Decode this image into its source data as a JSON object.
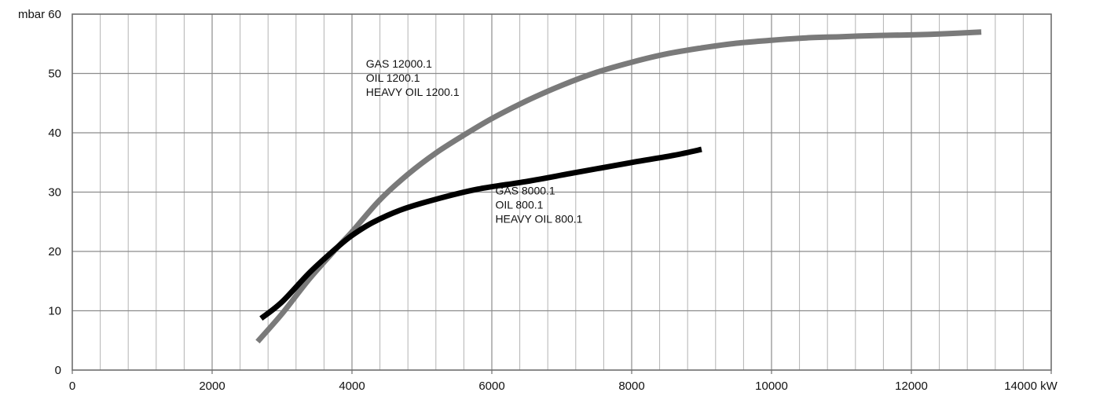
{
  "chart_data": {
    "type": "line",
    "title": "",
    "xlabel": "",
    "ylabel": "",
    "x_unit": "kW",
    "y_unit": "mbar",
    "xlim": [
      0,
      14000
    ],
    "ylim": [
      0,
      60
    ],
    "x_major_ticks": [
      0,
      2000,
      4000,
      6000,
      8000,
      10000,
      12000,
      14000
    ],
    "x_minor_step": 400,
    "y_ticks": [
      0,
      10,
      20,
      30,
      40,
      50,
      60
    ],
    "x_tick_labels": [
      "0",
      "2000",
      "4000",
      "6000",
      "8000",
      "10000",
      "12000",
      "14000 kW"
    ],
    "y_tick_labels": [
      "0",
      "10",
      "20",
      "30",
      "40",
      "50",
      "mbar 60"
    ],
    "grid": true,
    "legend": "none",
    "series": [
      {
        "name": "",
        "color": "#7a7a7a",
        "labels": [
          "GAS 12000.1",
          "OIL 1200.1",
          "HEAVY OIL 1200.1"
        ],
        "label_anchor": [
          4200,
          51
        ],
        "x": [
          2650,
          3000,
          3400,
          3800,
          4000,
          4400,
          4800,
          5200,
          5600,
          6000,
          6500,
          7000,
          7500,
          8000,
          8500,
          9000,
          9500,
          10000,
          10500,
          11000,
          11500,
          12000,
          12500,
          13000
        ],
        "y": [
          4.8,
          9.5,
          15.5,
          20.8,
          23.3,
          28.7,
          33.0,
          36.6,
          39.6,
          42.4,
          45.4,
          48.0,
          50.2,
          51.9,
          53.3,
          54.3,
          55.1,
          55.6,
          56.0,
          56.2,
          56.4,
          56.5,
          56.7,
          57.0
        ]
      },
      {
        "name": "",
        "color": "#000000",
        "labels": [
          "GAS 8000.1",
          "OIL 800.1",
          "HEAVY OIL 800.1"
        ],
        "label_anchor": [
          6050,
          29.6
        ],
        "x": [
          2700,
          3000,
          3400,
          3800,
          4000,
          4300,
          4700,
          5200,
          5800,
          6500,
          7200,
          8000,
          8600,
          9000
        ],
        "y": [
          8.7,
          11.5,
          16.5,
          20.8,
          22.7,
          24.9,
          27.0,
          28.8,
          30.5,
          31.8,
          33.3,
          35.0,
          36.2,
          37.2
        ]
      }
    ]
  }
}
